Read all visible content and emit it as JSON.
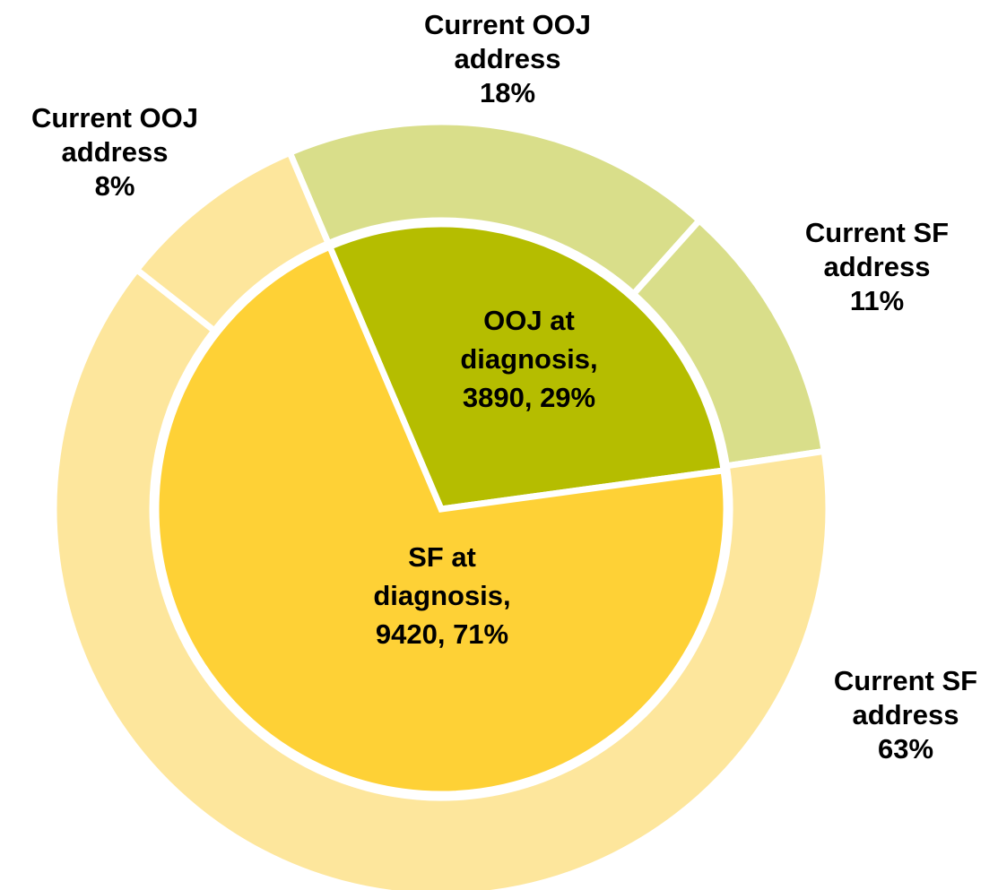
{
  "chart_data": {
    "type": "sunburst",
    "inner": {
      "values": [
        3890,
        9420
      ],
      "value_labels": [
        "OOJ at diagnosis, 3890, 29%",
        "SF at diagnosis, 9420, 71%"
      ],
      "colors": [
        "#b5bd00",
        "#fed136"
      ]
    },
    "outer": {
      "categories": [
        "Current OOJ address",
        "Current SF address",
        "Current SF address",
        "Current OOJ address"
      ],
      "values": [
        18,
        11,
        63,
        8
      ],
      "value_labels": [
        "18%",
        "11%",
        "63%",
        "8%"
      ],
      "colors": [
        "#d9de8a",
        "#d9de8a",
        "#fde69c",
        "#fde69c"
      ]
    }
  }
}
